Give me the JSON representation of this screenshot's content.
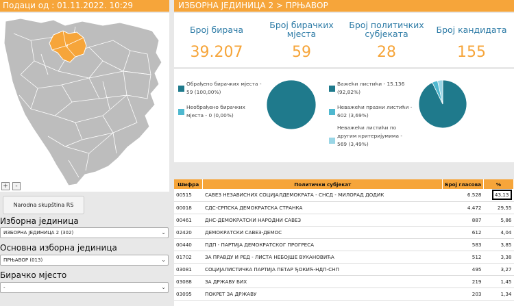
{
  "left": {
    "header": "Подаци од : 01.11.2022. 10:29",
    "zoom_in": "+",
    "zoom_out": "-",
    "map_label": "2",
    "button": "Narodna skupština RS",
    "fields": [
      {
        "label": "Изборна јединица",
        "value": "ИЗБОРНА ЈЕДИНИЦА 2 (302)"
      },
      {
        "label": "Основна изборна јединица",
        "value": "ПРЊАВОР (013)"
      },
      {
        "label": "Бирачко мјесто",
        "value": "-"
      }
    ]
  },
  "right": {
    "header": "ИЗБОРНА ЈЕДИНИЦА 2 > ПРЊАВОР",
    "stats": [
      {
        "title": "Број бирача",
        "value": "39.207"
      },
      {
        "title": "Број бирачких мјеста",
        "value": "59"
      },
      {
        "title": "Број политичких субјеката",
        "value": "28"
      },
      {
        "title": "Број кандидата",
        "value": "155"
      }
    ],
    "pie1_legend": [
      {
        "line1": "Обрађено бирачких мјеста -",
        "line2": "59 (100,00%)"
      },
      {
        "line1": "Необрађено бирачких",
        "line2": "мјеста - 0 (0,00%)"
      }
    ],
    "pie2_legend": [
      {
        "line1": "Важећи листићи - 15.136",
        "line2": "(92,82%)"
      },
      {
        "line1": "Неважећи празни листићи -",
        "line2": "602 (3,69%)"
      },
      {
        "line1": "Неважећи листићи по",
        "line2": "другим критеријумима -",
        "line3": "569 (3,49%)"
      }
    ],
    "pie1_values": [
      100.0,
      0.0
    ],
    "pie2_values": [
      92.82,
      3.69,
      3.49
    ],
    "colors": {
      "main": "#1f7a8c",
      "light": "#4fb8cf",
      "lighter": "#9ad6e6",
      "accent": "#f6a53a"
    }
  },
  "table": {
    "headers": [
      "Шифра",
      "Политички субјекат",
      "Број гласова",
      "%"
    ],
    "rows": [
      {
        "code": "00515",
        "name": "САВЕЗ НЕЗАВИСНИХ СОЦИЈАЛДЕМОКРАТА - СНСД - МИЛОРАД ДОДИК",
        "votes": "6.528",
        "pct": "43,13"
      },
      {
        "code": "00018",
        "name": "СДС-СРПСКА ДЕМОКРАТСКА СТРАНКА",
        "votes": "4.472",
        "pct": "29,55"
      },
      {
        "code": "00461",
        "name": "ДНС-ДЕМОКРАТСКИ НАРОДНИ САВЕЗ",
        "votes": "887",
        "pct": "5,86"
      },
      {
        "code": "02420",
        "name": "ДЕМОКРАТСКИ САВЕЗ-ДЕМОС",
        "votes": "612",
        "pct": "4,04"
      },
      {
        "code": "00440",
        "name": "ПДП - ПАРТИЈА ДЕМОКРАТСКОГ ПРОГРЕСА",
        "votes": "583",
        "pct": "3,85"
      },
      {
        "code": "01702",
        "name": "ЗА ПРАВДУ И РЕД - ЛИСТА НЕБОЈШЕ ВУКАНОВИЋА",
        "votes": "512",
        "pct": "3,38"
      },
      {
        "code": "03081",
        "name": "СОЦИЈАЛИСТИЧКА ПАРТИЈА ПЕТАР ЂОКИЋ-НДП-СНП",
        "votes": "495",
        "pct": "3,27"
      },
      {
        "code": "03088",
        "name": "ЗА ДРЖАВУ БИХ",
        "votes": "219",
        "pct": "1,45"
      },
      {
        "code": "03095",
        "name": "ПОКРЕТ ЗА ДРЖАВУ",
        "votes": "203",
        "pct": "1,34"
      }
    ]
  }
}
